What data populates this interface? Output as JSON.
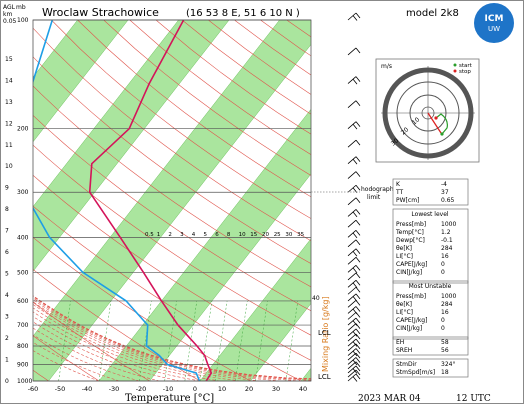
{
  "header": {
    "station": "Wroclaw Strachowice",
    "coords": "(16 53 8 E, 51 6 10 N )",
    "model": "model 2k8"
  },
  "footer": {
    "xlabel": "Temperature [°C]",
    "date": "2023 MAR 04",
    "time": "12 UTC"
  },
  "axes": {
    "left_units": [
      "AGL",
      "km",
      "mb"
    ],
    "left_top": "0.05",
    "km_ticks": [
      "0",
      "1",
      "2",
      "3",
      "4",
      "5",
      "6",
      "7",
      "8",
      "9",
      "10",
      "11",
      "12",
      "13",
      "14",
      "15"
    ],
    "mb_ticks": [
      "100",
      "200",
      "300",
      "400",
      "500",
      "600",
      "700",
      "800",
      "900",
      "1000"
    ],
    "temp_ticks": [
      "-60",
      "-50",
      "-40",
      "-30",
      "-20",
      "-10",
      "0",
      "10",
      "20",
      "30",
      "40"
    ],
    "mixing_ratio_label": "Mixing Ratio [g/kg]",
    "mixing_ratio_ticks": [
      "0.5",
      "1",
      "2",
      "3",
      "4",
      "5",
      "6",
      "8",
      "10",
      "15",
      "20",
      "25",
      "30",
      "35"
    ],
    "lcl_label": "LCL",
    "right_40": "40"
  },
  "hodograph": {
    "units": "m/s",
    "legend": [
      "start",
      "stop"
    ],
    "rings": [
      "10",
      "20",
      "30"
    ],
    "section_label": "hodograph",
    "limit_label": "limit"
  },
  "indices": {
    "general": [
      [
        "K",
        "-4"
      ],
      [
        "TT",
        "37"
      ],
      [
        "PW[cm]",
        "0.65"
      ]
    ],
    "lowest_title": "Lowest level",
    "lowest": [
      [
        "Press[mb]",
        "1000"
      ],
      [
        "Temp[°C]",
        "1.2"
      ],
      [
        "Dewp[°C]",
        "-0.1"
      ],
      [
        "θe[K]",
        "284"
      ],
      [
        "LI[°C]",
        "16"
      ],
      [
        "CAPE[J/kg]",
        "0"
      ],
      [
        "CIN[J/kg]",
        "0"
      ]
    ],
    "most_unstable_title": "Most Unstable",
    "most_unstable": [
      [
        "Press[mb]",
        "1000"
      ],
      [
        "θe[K]",
        "284"
      ],
      [
        "LI[°C]",
        "16"
      ],
      [
        "CAPE[J/kg]",
        "0"
      ],
      [
        "CIN[J/kg]",
        "0"
      ]
    ],
    "helicity": [
      [
        "EH",
        "58"
      ],
      [
        "SREH",
        "56"
      ]
    ],
    "storm": [
      [
        "StmDir",
        "324°"
      ],
      [
        "StmSpd[m/s]",
        "18"
      ]
    ]
  },
  "chart_data": {
    "type": "line",
    "title": "Wroclaw Strachowice",
    "xlabel": "Temperature [°C]",
    "ylabel": "mb",
    "xlim": [
      -60,
      40
    ],
    "ylim_mb": [
      1000,
      100
    ],
    "series": [
      {
        "name": "Temperature",
        "color": "#d4145a",
        "points": [
          [
            1000,
            1.2
          ],
          [
            950,
            1
          ],
          [
            900,
            -1
          ],
          [
            850,
            -3
          ],
          [
            800,
            -6
          ],
          [
            700,
            -13
          ],
          [
            600,
            -20
          ],
          [
            500,
            -28
          ],
          [
            400,
            -38
          ],
          [
            300,
            -51
          ],
          [
            250,
            -55
          ],
          [
            200,
            -53
          ],
          [
            150,
            -56
          ],
          [
            100,
            -59
          ]
        ]
      },
      {
        "name": "Dewpoint",
        "color": "#1e9ee6",
        "points": [
          [
            1000,
            -0.1
          ],
          [
            950,
            -2
          ],
          [
            900,
            -9
          ],
          [
            850,
            -12
          ],
          [
            800,
            -16
          ],
          [
            700,
            -19
          ],
          [
            600,
            -27
          ],
          [
            500,
            -40
          ],
          [
            400,
            -52
          ],
          [
            300,
            -64
          ],
          [
            200,
            -75
          ],
          [
            100,
            -85
          ]
        ]
      }
    ],
    "wind_barbs_mb": [
      1000,
      975,
      950,
      925,
      900,
      875,
      850,
      825,
      800,
      775,
      750,
      725,
      700,
      675,
      650,
      625,
      600,
      575,
      550,
      525,
      500,
      475,
      450,
      425,
      400,
      375,
      350,
      325,
      300,
      275,
      250,
      225,
      200,
      175,
      150,
      125,
      100
    ]
  }
}
